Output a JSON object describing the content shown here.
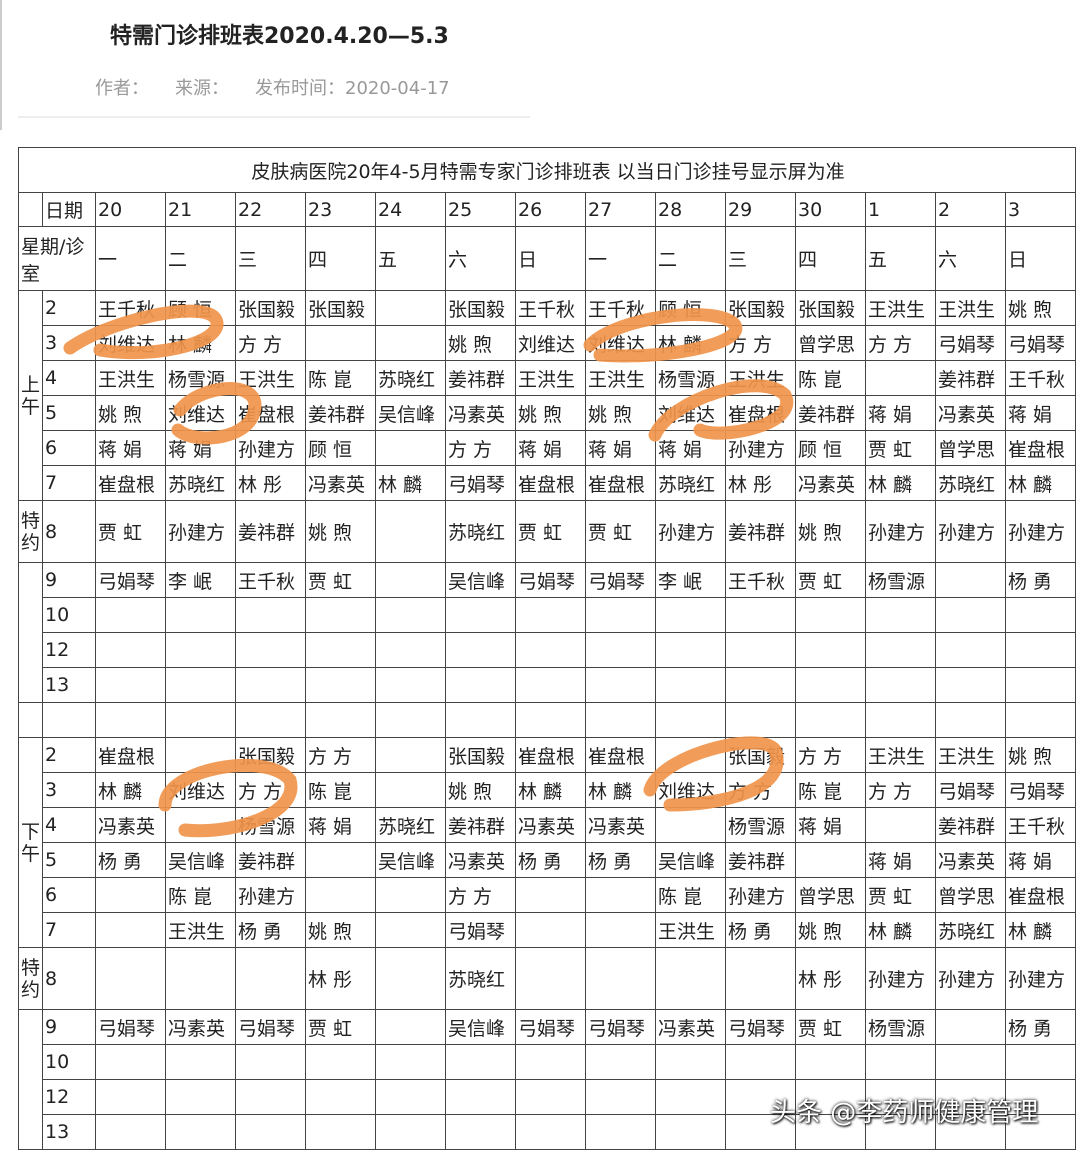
{
  "header": {
    "title": "特需门诊排班表2020.4.20—5.3",
    "author_label": "作者：",
    "source_label": "来源：",
    "published": "发布时间：2020-04-17"
  },
  "table": {
    "caption": "皮肤病医院20年4-5月特需专家门诊排班表 以当日门诊挂号显示屏为准",
    "date_label": "日期",
    "dates": [
      "20",
      "21",
      "22",
      "23",
      "24",
      "25",
      "26",
      "27",
      "28",
      "29",
      "30",
      "1",
      "2",
      "3"
    ],
    "weekday_label": "星期/诊室",
    "weekdays": [
      "一",
      "二",
      "三",
      "四",
      "五",
      "六",
      "日",
      "一",
      "二",
      "三",
      "四",
      "五",
      "六",
      "日"
    ],
    "sections": [
      {
        "label": "上午",
        "special_label": "特约",
        "rows": [
          {
            "room": "2",
            "cells": [
              "王千秋",
              "顾 恒",
              "张国毅",
              "张国毅",
              null,
              "张国毅",
              "王千秋",
              "王千秋",
              "顾 恒",
              "张国毅",
              "张国毅",
              "王洪生",
              "王洪生",
              "姚 煦"
            ]
          },
          {
            "room": "3",
            "cells": [
              "刘维达",
              "林 麟",
              "方 方",
              null,
              null,
              "姚 煦",
              "刘维达",
              "刘维达",
              "林 麟",
              "方 方",
              "曾学思",
              "方 方",
              "弓娟琴",
              "弓娟琴"
            ]
          },
          {
            "room": "4",
            "cells": [
              "王洪生",
              "杨雪源",
              "王洪生",
              "陈 崑",
              "苏晓红",
              "姜祎群",
              "王洪生",
              "王洪生",
              "杨雪源",
              "王洪生",
              "陈 崑",
              null,
              "姜祎群",
              "王千秋"
            ]
          },
          {
            "room": "5",
            "cells": [
              "姚 煦",
              "刘维达",
              "崔盘根",
              "姜祎群",
              "吴信峰",
              "冯素英",
              "姚 煦",
              "姚 煦",
              "刘维达",
              "崔盘根",
              "姜祎群",
              "蒋 娟",
              "冯素英",
              "蒋 娟"
            ]
          },
          {
            "room": "6",
            "cells": [
              "蒋 娟",
              "蒋 娟",
              "孙建方",
              "顾 恒",
              null,
              "方 方",
              "蒋 娟",
              "蒋 娟",
              "蒋 娟",
              "孙建方",
              "顾 恒",
              "贾 虹",
              "曾学思",
              "崔盘根"
            ]
          },
          {
            "room": "7",
            "cells": [
              "崔盘根",
              "苏晓红",
              "林 彤",
              "冯素英",
              "林 麟",
              "弓娟琴",
              "崔盘根",
              "崔盘根",
              "苏晓红",
              "林 彤",
              "冯素英",
              "林 麟",
              "苏晓红",
              "林 麟"
            ]
          },
          {
            "room": "8",
            "cells": [
              "贾 虹",
              "孙建方",
              "姜祎群",
              "姚 煦",
              null,
              "苏晓红",
              "贾 虹",
              "贾 虹",
              "孙建方",
              "姜祎群",
              "姚 煦",
              "孙建方",
              "孙建方",
              "孙建方"
            ]
          },
          {
            "room": "9",
            "cells": [
              "弓娟琴",
              "李 岷",
              "王千秋",
              "贾 虹",
              null,
              "吴信峰",
              "弓娟琴",
              "弓娟琴",
              "李 岷",
              "王千秋",
              "贾 虹",
              "杨雪源",
              null,
              "杨 勇"
            ]
          },
          {
            "room": "10",
            "cells": [
              null,
              null,
              null,
              null,
              null,
              null,
              null,
              null,
              null,
              null,
              null,
              null,
              null,
              null
            ]
          },
          {
            "room": "12",
            "cells": [
              null,
              null,
              null,
              null,
              null,
              null,
              null,
              null,
              null,
              null,
              null,
              null,
              null,
              null
            ]
          },
          {
            "room": "13",
            "cells": [
              null,
              null,
              null,
              null,
              null,
              null,
              null,
              null,
              null,
              null,
              null,
              null,
              null,
              null
            ]
          }
        ]
      },
      {
        "label": "下午",
        "special_label": "特约",
        "rows": [
          {
            "room": "2",
            "cells": [
              "崔盘根",
              null,
              "张国毅",
              "方 方",
              null,
              "张国毅",
              "崔盘根",
              "崔盘根",
              null,
              "张国毅",
              "方 方",
              "王洪生",
              "王洪生",
              "姚 煦"
            ]
          },
          {
            "room": "3",
            "cells": [
              "林 麟",
              "刘维达",
              "方 方",
              "陈 崑",
              null,
              "姚 煦",
              "林 麟",
              "林 麟",
              "刘维达",
              "方 方",
              "陈 崑",
              "方 方",
              "弓娟琴",
              "弓娟琴"
            ]
          },
          {
            "room": "4",
            "cells": [
              "冯素英",
              null,
              "杨雪源",
              "蒋 娟",
              "苏晓红",
              "姜祎群",
              "冯素英",
              "冯素英",
              null,
              "杨雪源",
              "蒋 娟",
              null,
              "姜祎群",
              "王千秋"
            ]
          },
          {
            "room": "5",
            "cells": [
              "杨 勇",
              "吴信峰",
              "姜祎群",
              null,
              "吴信峰",
              "冯素英",
              "杨 勇",
              "杨 勇",
              "吴信峰",
              "姜祎群",
              null,
              "蒋 娟",
              "冯素英",
              "蒋 娟"
            ]
          },
          {
            "room": "6",
            "cells": [
              null,
              "陈 崑",
              "孙建方",
              null,
              null,
              "方 方",
              null,
              null,
              "陈 崑",
              "孙建方",
              "曾学思",
              "贾 虹",
              "曾学思",
              "崔盘根"
            ]
          },
          {
            "room": "7",
            "cells": [
              null,
              "王洪生",
              "杨 勇",
              "姚 煦",
              null,
              "弓娟琴",
              null,
              null,
              "王洪生",
              "杨 勇",
              "姚 煦",
              "林 麟",
              "苏晓红",
              "林 麟"
            ]
          },
          {
            "room": "8",
            "cells": [
              null,
              null,
              null,
              "林 彤",
              null,
              "苏晓红",
              null,
              null,
              null,
              null,
              "林 彤",
              "孙建方",
              "孙建方",
              "孙建方"
            ]
          },
          {
            "room": "9",
            "cells": [
              "弓娟琴",
              "冯素英",
              "弓娟琴",
              "贾 虹",
              null,
              "吴信峰",
              "弓娟琴",
              "弓娟琴",
              "冯素英",
              "弓娟琴",
              "贾 虹",
              "杨雪源",
              null,
              "杨 勇"
            ]
          },
          {
            "room": "10",
            "cells": [
              null,
              null,
              null,
              null,
              null,
              null,
              null,
              null,
              null,
              null,
              null,
              null,
              null,
              null
            ]
          },
          {
            "room": "12",
            "cells": [
              null,
              null,
              null,
              null,
              null,
              null,
              null,
              null,
              null,
              null,
              null,
              null,
              null,
              null
            ]
          },
          {
            "room": "13",
            "cells": [
              null,
              null,
              null,
              null,
              null,
              null,
              null,
              null,
              null,
              null,
              null,
              null,
              null,
              null
            ]
          }
        ]
      }
    ]
  },
  "watermark": "头条 @李药师健康管理"
}
